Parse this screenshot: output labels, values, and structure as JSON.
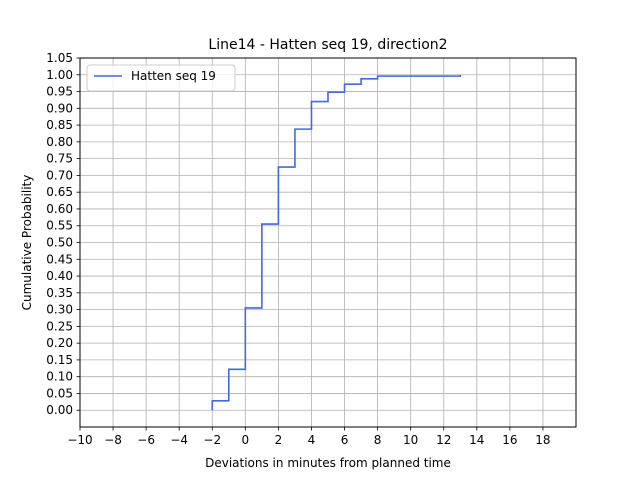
{
  "chart_data": {
    "type": "line",
    "title": "Line14 - Hatten seq 19, direction2",
    "xlabel": "Deviations in minutes from planned time",
    "ylabel": "Cumulative Probability",
    "xlim": [
      -10,
      20
    ],
    "ylim": [
      -0.05,
      1.05
    ],
    "xticks": [
      -10,
      -8,
      -6,
      -4,
      -2,
      0,
      2,
      4,
      6,
      8,
      10,
      12,
      14,
      16,
      18
    ],
    "xtick_labels": [
      "−10",
      "−8",
      "−6",
      "−4",
      "−2",
      "0",
      "2",
      "4",
      "6",
      "8",
      "10",
      "12",
      "14",
      "16",
      "18"
    ],
    "yticks": [
      0.0,
      0.05,
      0.1,
      0.15,
      0.2,
      0.25,
      0.3,
      0.35,
      0.4,
      0.45,
      0.5,
      0.55,
      0.6,
      0.65,
      0.7,
      0.75,
      0.8,
      0.85,
      0.9,
      0.95,
      1.0,
      1.05
    ],
    "ytick_labels": [
      "0.00",
      "0.05",
      "0.10",
      "0.15",
      "0.20",
      "0.25",
      "0.30",
      "0.35",
      "0.40",
      "0.45",
      "0.50",
      "0.55",
      "0.60",
      "0.65",
      "0.70",
      "0.75",
      "0.80",
      "0.85",
      "0.90",
      "0.95",
      "1.00",
      "1.05"
    ],
    "grid": true,
    "legend_position": "top-left",
    "series": [
      {
        "name": "Hatten seq 19",
        "color": "#4169e1",
        "step": "post",
        "x": [
          -2,
          -1,
          0,
          1,
          2,
          3,
          4,
          5,
          6,
          7,
          8,
          13
        ],
        "y": [
          0.028,
          0.122,
          0.305,
          0.555,
          0.725,
          0.838,
          0.92,
          0.948,
          0.972,
          0.988,
          0.996,
          1.0
        ]
      }
    ]
  }
}
